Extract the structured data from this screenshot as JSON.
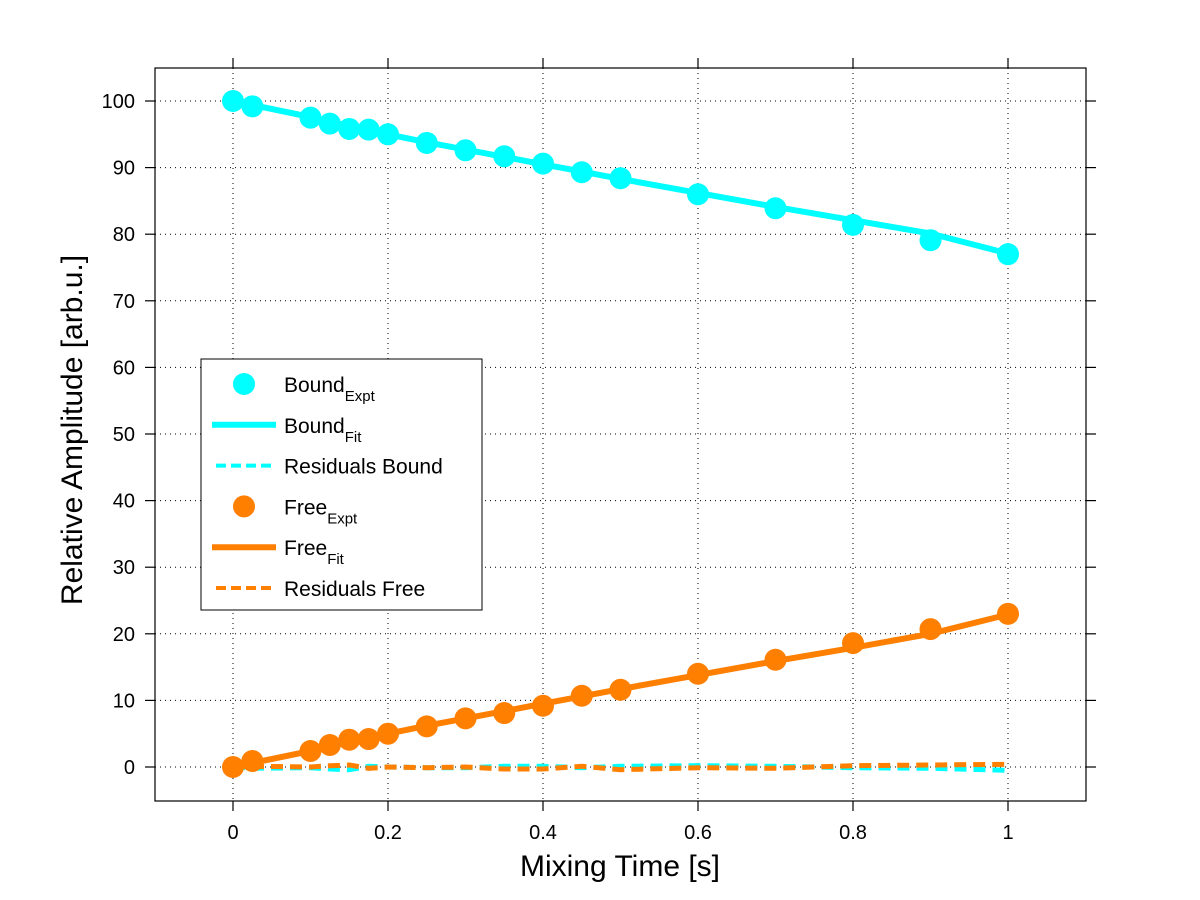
{
  "chart_data": {
    "type": "line",
    "title": "",
    "xlabel": "Mixing Time [s]",
    "ylabel": "Relative Amplitude [arb.u.]",
    "xlim": [
      -0.1,
      1.1
    ],
    "ylim": [
      -5,
      105
    ],
    "xticks": [
      0,
      0.2,
      0.4,
      0.6,
      0.8,
      1
    ],
    "xtick_labels": [
      "0",
      "0.2",
      "0.4",
      "0.6",
      "0.8",
      "1"
    ],
    "yticks": [
      0,
      10,
      20,
      30,
      40,
      50,
      60,
      70,
      80,
      90,
      100
    ],
    "ytick_labels": [
      "0",
      "10",
      "20",
      "30",
      "40",
      "50",
      "60",
      "70",
      "80",
      "90",
      "100"
    ],
    "grid": true,
    "grid_style": "dotted",
    "legend_placement": "center-left",
    "x": [
      0,
      0.025,
      0.1,
      0.125,
      0.15,
      0.175,
      0.2,
      0.25,
      0.3,
      0.35,
      0.4,
      0.45,
      0.5,
      0.6,
      0.7,
      0.8,
      0.9,
      1.0
    ],
    "series": [
      {
        "name": "Bound Expt",
        "label_main": "Bound",
        "label_sub": "Expt",
        "kind": "markers",
        "color": "#00ffff",
        "values": [
          100,
          99.2,
          97.5,
          96.6,
          95.8,
          95.7,
          95.0,
          93.7,
          92.6,
          91.7,
          90.6,
          89.3,
          88.4,
          86.0,
          83.9,
          81.4,
          79.1,
          77.0
        ]
      },
      {
        "name": "Bound Fit",
        "label_main": "Bound",
        "label_sub": "Fit",
        "kind": "line",
        "color": "#00ffff",
        "values": [
          100,
          99.4,
          97.6,
          96.9,
          96.2,
          95.6,
          95.0,
          93.8,
          92.7,
          91.6,
          90.5,
          89.4,
          88.3,
          86.2,
          84.1,
          82.1,
          80.1,
          77.1
        ]
      },
      {
        "name": "Residuals Bound",
        "label_main": "Residuals Bound",
        "label_sub": "",
        "kind": "dashed",
        "color": "#00ffff",
        "values": [
          0,
          -0.2,
          -0.1,
          -0.3,
          -0.4,
          0.1,
          0.0,
          -0.1,
          -0.1,
          0.1,
          0.1,
          -0.1,
          0.1,
          0.2,
          0.1,
          -0.1,
          -0.2,
          -0.5
        ]
      },
      {
        "name": "Free Expt",
        "label_main": "Free",
        "label_sub": "Expt",
        "kind": "markers",
        "color": "#ff7f00",
        "values": [
          0,
          0.9,
          2.4,
          3.3,
          4.1,
          4.2,
          5.0,
          6.1,
          7.3,
          8.1,
          9.2,
          10.7,
          11.6,
          14.0,
          16.1,
          18.6,
          20.7,
          23.0
        ]
      },
      {
        "name": "Free Fit",
        "label_main": "Free",
        "label_sub": "Fit",
        "kind": "line",
        "color": "#ff7f00",
        "values": [
          0,
          0.6,
          2.4,
          3.1,
          3.8,
          4.4,
          5.0,
          6.2,
          7.3,
          8.4,
          9.5,
          10.6,
          11.7,
          13.8,
          15.9,
          17.9,
          20.0,
          22.9
        ]
      },
      {
        "name": "Residuals Free",
        "label_main": "Residuals Free",
        "label_sub": "",
        "kind": "dashed",
        "color": "#ff7f00",
        "values": [
          0,
          0.1,
          0.0,
          0.2,
          0.3,
          -0.2,
          0.0,
          -0.1,
          0.0,
          -0.3,
          -0.3,
          0.1,
          -0.4,
          -0.1,
          -0.2,
          0.2,
          0.3,
          0.4
        ]
      }
    ]
  }
}
